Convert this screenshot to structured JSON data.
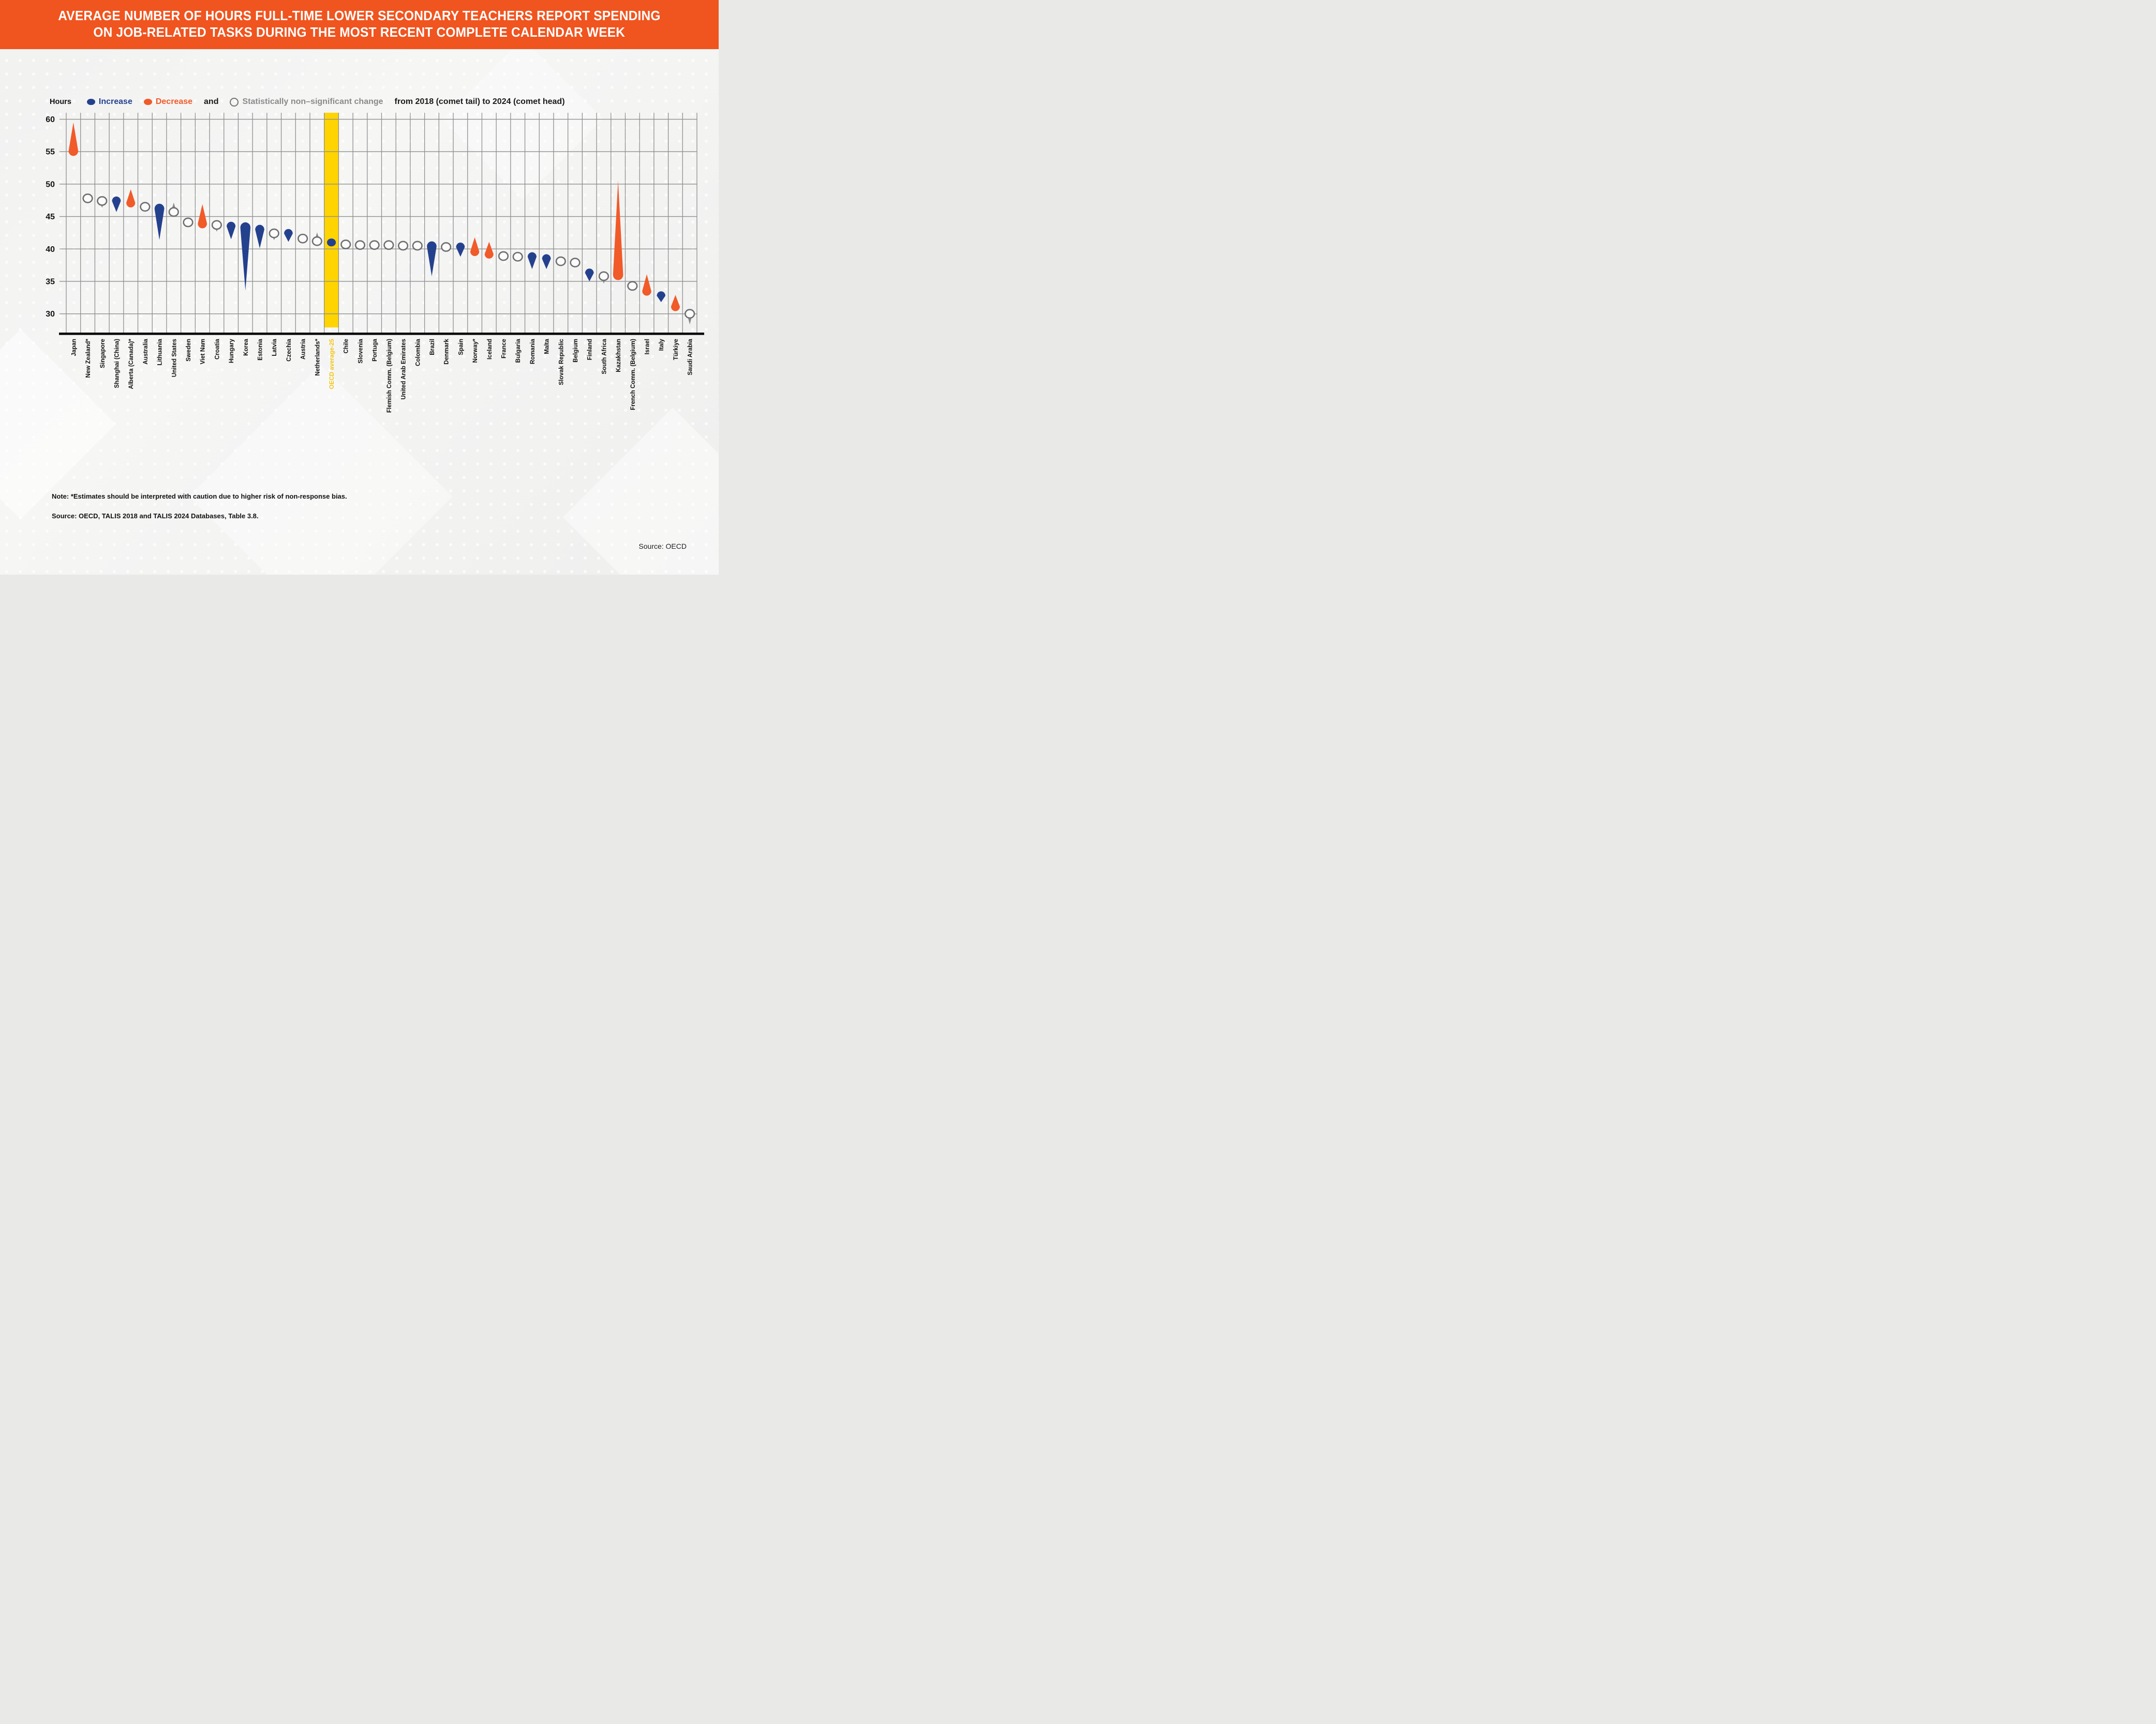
{
  "banner": {
    "title_line1": "AVERAGE NUMBER OF HOURS FULL-TIME LOWER SECONDARY TEACHERS REPORT SPENDING",
    "title_line2": "ON JOB-RELATED TASKS DURING THE MOST RECENT COMPLETE CALENDAR WEEK"
  },
  "legend": {
    "axis_label": "Hours",
    "increase_label": "Increase",
    "decrease_label": "Decrease",
    "and_label": "and",
    "nonsig_label": "Statistically non–significant change",
    "suffix_label": "from 2018 (comet tail) to 2024 (comet head)"
  },
  "colors": {
    "increase": "#24418E",
    "decrease": "#F15A29",
    "nonsig_stroke": "#6F6F6F",
    "nonsig_tail": "#8A8A8A",
    "grid": "#8F8F8F",
    "axis": "#000000",
    "highlight_band": "#FFD400",
    "highlight_label": "#F2C511",
    "banner": "#F0541F",
    "label": "#111111"
  },
  "chart_data": {
    "type": "comet-scatter",
    "title": "Average number of hours full-time lower secondary teachers report spending on job-related tasks during the most recent complete calendar week",
    "ylabel": "Hours",
    "yticks": [
      60,
      55,
      50,
      45,
      40,
      35,
      30
    ],
    "ylim": [
      27.9,
      61
    ],
    "grid": true,
    "legend_position": "top",
    "series_note": "head = 2024 value, tail = 2018 value; change classifies significance/direction",
    "countries": [
      {
        "label": "Japan",
        "change": "decrease",
        "head": 55.2,
        "tail": 59.5
      },
      {
        "label": "New Zealand*",
        "change": "nonsig",
        "head": 47.8,
        "tail": null
      },
      {
        "label": "Singapore",
        "change": "nonsig",
        "head": 47.4,
        "tail": 46.6
      },
      {
        "label": "Shanghai (China)",
        "change": "increase",
        "head": 47.3,
        "tail": 45.7
      },
      {
        "label": "Alberta (Canada)*",
        "change": "decrease",
        "head": 47.2,
        "tail": 49.2
      },
      {
        "label": "Australia",
        "change": "nonsig",
        "head": 46.5,
        "tail": null
      },
      {
        "label": "Lithuania",
        "change": "increase",
        "head": 46.1,
        "tail": 41.4
      },
      {
        "label": "United States",
        "change": "nonsig",
        "head": 45.7,
        "tail": 46.9
      },
      {
        "label": "Sweden",
        "change": "nonsig",
        "head": 44.1,
        "tail": null
      },
      {
        "label": "Viet Nam",
        "change": "decrease",
        "head": 44.0,
        "tail": 46.9
      },
      {
        "label": "Croatia",
        "change": "nonsig",
        "head": 43.7,
        "tail": 42.9
      },
      {
        "label": "Hungary",
        "change": "increase",
        "head": 43.4,
        "tail": 41.5
      },
      {
        "label": "Korea",
        "change": "increase",
        "head": 43.2,
        "tail": 33.6
      },
      {
        "label": "Estonia",
        "change": "increase",
        "head": 42.9,
        "tail": 40.1
      },
      {
        "label": "Latvia",
        "change": "nonsig",
        "head": 42.4,
        "tail": 41.6
      },
      {
        "label": "Czechia",
        "change": "increase",
        "head": 42.3,
        "tail": 41.1
      },
      {
        "label": "Austria",
        "change": "nonsig",
        "head": 41.6,
        "tail": null
      },
      {
        "label": "Netherlands*",
        "change": "nonsig",
        "head": 41.2,
        "tail": 42.3
      },
      {
        "label": "OECD average-25",
        "change": "increase",
        "head": 41.0,
        "tail": null,
        "highlight": true
      },
      {
        "label": "Chile",
        "change": "nonsig",
        "head": 40.7,
        "tail": null
      },
      {
        "label": "Slovenia",
        "change": "nonsig",
        "head": 40.6,
        "tail": null
      },
      {
        "label": "Portuga",
        "change": "nonsig",
        "head": 40.6,
        "tail": null
      },
      {
        "label": "Flemish Comm. (Belgium)",
        "change": "nonsig",
        "head": 40.6,
        "tail": null
      },
      {
        "label": "United Arab Emirates",
        "change": "nonsig",
        "head": 40.5,
        "tail": null
      },
      {
        "label": "Colombia",
        "change": "nonsig",
        "head": 40.5,
        "tail": null
      },
      {
        "label": "Brazil",
        "change": "increase",
        "head": 40.3,
        "tail": 35.8
      },
      {
        "label": "Denmark",
        "change": "nonsig",
        "head": 40.3,
        "tail": null
      },
      {
        "label": "Spain",
        "change": "increase",
        "head": 40.2,
        "tail": 38.8
      },
      {
        "label": "Norway*",
        "change": "decrease",
        "head": 39.7,
        "tail": 41.8
      },
      {
        "label": "Iceland",
        "change": "decrease",
        "head": 39.3,
        "tail": 41.1
      },
      {
        "label": "France",
        "change": "nonsig",
        "head": 38.9,
        "tail": null
      },
      {
        "label": "Bulgaria",
        "change": "nonsig",
        "head": 38.8,
        "tail": null
      },
      {
        "label": "Romania",
        "change": "increase",
        "head": 38.7,
        "tail": 36.9
      },
      {
        "label": "Malta",
        "change": "increase",
        "head": 38.4,
        "tail": 36.9
      },
      {
        "label": "Slovak Republic",
        "change": "nonsig",
        "head": 38.1,
        "tail": null
      },
      {
        "label": "Belgium",
        "change": "nonsig",
        "head": 37.9,
        "tail": null
      },
      {
        "label": "Finland",
        "change": "increase",
        "head": 36.2,
        "tail": 35.0
      },
      {
        "label": "South Africa",
        "change": "nonsig",
        "head": 35.8,
        "tail": 34.9
      },
      {
        "label": "Kazakhstan",
        "change": "decrease",
        "head": 36.1,
        "tail": 50.5
      },
      {
        "label": "French Comm. (Belgium)",
        "change": "nonsig",
        "head": 34.3,
        "tail": null
      },
      {
        "label": "Israel",
        "change": "decrease",
        "head": 33.6,
        "tail": 36.1
      },
      {
        "label": "Italy",
        "change": "increase",
        "head": 32.7,
        "tail": 31.8
      },
      {
        "label": "Türkiye",
        "change": "decrease",
        "head": 31.2,
        "tail": 32.9
      },
      {
        "label": "Saudi Arabia",
        "change": "nonsig",
        "head": 30.0,
        "tail": 28.6
      }
    ]
  },
  "notes": {
    "note": "Note: *Estimates should be interpreted with caution due to higher risk of non-response bias.",
    "source": "Source: OECD, TALIS 2018 and TALIS 2024 Databases, Table 3.8.",
    "credit": "Source: OECD"
  }
}
